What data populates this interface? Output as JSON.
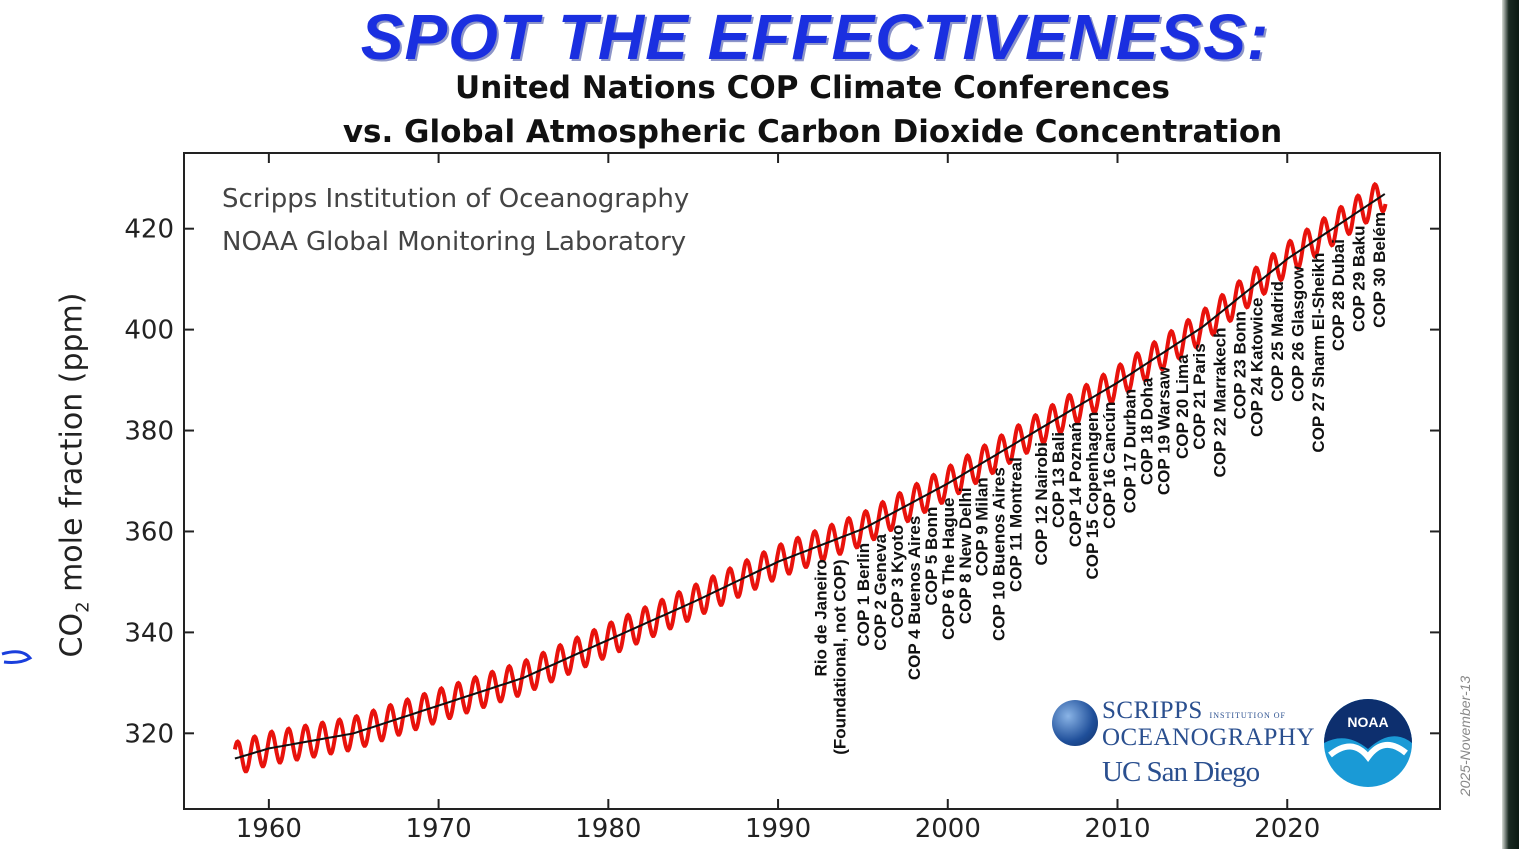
{
  "headline": "SPOT THE EFFECTIVENESS:",
  "subtitle_line1": "United Nations COP Climate Conferences",
  "subtitle_line2": "vs. Global Atmospheric Carbon Dioxide Concentration",
  "credit_line1": "Scripps Institution of Oceanography",
  "credit_line2": "NOAA Global Monitoring Laboratory",
  "date_stamp": "2025-November-13",
  "logos": {
    "scripps": "SCRIPPS INSTITUTION OF OCEANOGRAPHY",
    "ucsd": "UC San Diego",
    "noaa": "NOAA"
  },
  "colors": {
    "headline": "#1a2fe0",
    "monthly_series": "#e8120c",
    "trend_series": "#111111"
  },
  "chart_data": {
    "type": "line",
    "title": "United Nations COP Climate Conferences vs. Global Atmospheric Carbon Dioxide Concentration",
    "xlabel": "",
    "ylabel": "CO2 mole fraction (ppm)",
    "xlim": [
      1955,
      2029
    ],
    "ylim": [
      305,
      435
    ],
    "xticks": [
      1960,
      1970,
      1980,
      1990,
      2000,
      2010,
      2020
    ],
    "yticks": [
      320,
      340,
      360,
      380,
      400,
      420
    ],
    "grid": false,
    "series": [
      {
        "kind": "monthly",
        "x": [
          1958,
          1960,
          1965,
          1970,
          1975,
          1980,
          1985,
          1990,
          1995,
          2000,
          2005,
          2010,
          2015,
          2020,
          2025.8
        ],
        "y": [
          315,
          317,
          320,
          325.5,
          331,
          338.5,
          346,
          354,
          360.5,
          369.5,
          379.5,
          389.5,
          400.5,
          414,
          427
        ],
        "seasonal_amplitude_ppm": 3.2
      },
      {
        "kind": "trend",
        "x": [
          1958,
          1960,
          1965,
          1970,
          1975,
          1980,
          1985,
          1990,
          1995,
          2000,
          2005,
          2010,
          2015,
          2020,
          2025.8
        ],
        "y": [
          315,
          317,
          320,
          325.5,
          331,
          338.5,
          346,
          354,
          360.5,
          369.5,
          379.5,
          389.5,
          400.5,
          414,
          427
        ]
      }
    ],
    "annotations": [
      {
        "x": 1992.5,
        "lines": [
          "Rio de Janeiro",
          "(Foundational, not COP)"
        ]
      },
      {
        "x": 1995,
        "lines": [
          "COP 1 Berlin"
        ]
      },
      {
        "x": 1996,
        "lines": [
          "COP 2 Geneva"
        ]
      },
      {
        "x": 1997,
        "lines": [
          "COP 3 Kyoto"
        ]
      },
      {
        "x": 1998,
        "lines": [
          "COP 4 Buenos Aires"
        ]
      },
      {
        "x": 1999,
        "lines": [
          "COP 5 Bonn"
        ]
      },
      {
        "x": 2000,
        "lines": [
          "COP 6 The Hague"
        ]
      },
      {
        "x": 2001,
        "lines": [
          "COP 8 New Delhi"
        ]
      },
      {
        "x": 2002,
        "lines": [
          "COP 9 Milan"
        ]
      },
      {
        "x": 2003,
        "lines": [
          "COP 10 Buenos Aires"
        ]
      },
      {
        "x": 2004,
        "lines": [
          "COP 11 Montreal"
        ]
      },
      {
        "x": 2005.5,
        "lines": [
          "COP 12 Nairobi"
        ]
      },
      {
        "x": 2006.5,
        "lines": [
          "COP 13 Bali"
        ]
      },
      {
        "x": 2007.5,
        "lines": [
          "COP 14 Poznań"
        ]
      },
      {
        "x": 2008.5,
        "lines": [
          "COP 15 Copenhagen"
        ]
      },
      {
        "x": 2009.5,
        "lines": [
          "COP 16 Cancún"
        ]
      },
      {
        "x": 2010.7,
        "lines": [
          "COP 17 Durban"
        ]
      },
      {
        "x": 2011.7,
        "lines": [
          "COP 18 Doha"
        ]
      },
      {
        "x": 2012.7,
        "lines": [
          "COP 19 Warsaw"
        ]
      },
      {
        "x": 2013.8,
        "lines": [
          "COP 20 Lima"
        ]
      },
      {
        "x": 2014.8,
        "lines": [
          "COP 21 Paris"
        ]
      },
      {
        "x": 2016,
        "lines": [
          "COP 22 Marrakech"
        ]
      },
      {
        "x": 2017.2,
        "lines": [
          "COP 23 Bonn"
        ]
      },
      {
        "x": 2018.2,
        "lines": [
          "COP 24 Katowice"
        ]
      },
      {
        "x": 2019.4,
        "lines": [
          "COP 25 Madrid"
        ]
      },
      {
        "x": 2020.6,
        "lines": [
          "COP 26 Glasgow"
        ]
      },
      {
        "x": 2021.8,
        "lines": [
          "COP 27 Sharm El-Sheikh"
        ]
      },
      {
        "x": 2023,
        "lines": [
          "COP 28 Dubai"
        ]
      },
      {
        "x": 2024.2,
        "lines": [
          "COP 29 Baku"
        ]
      },
      {
        "x": 2025.4,
        "lines": [
          "COP 30 Belém"
        ]
      }
    ]
  }
}
